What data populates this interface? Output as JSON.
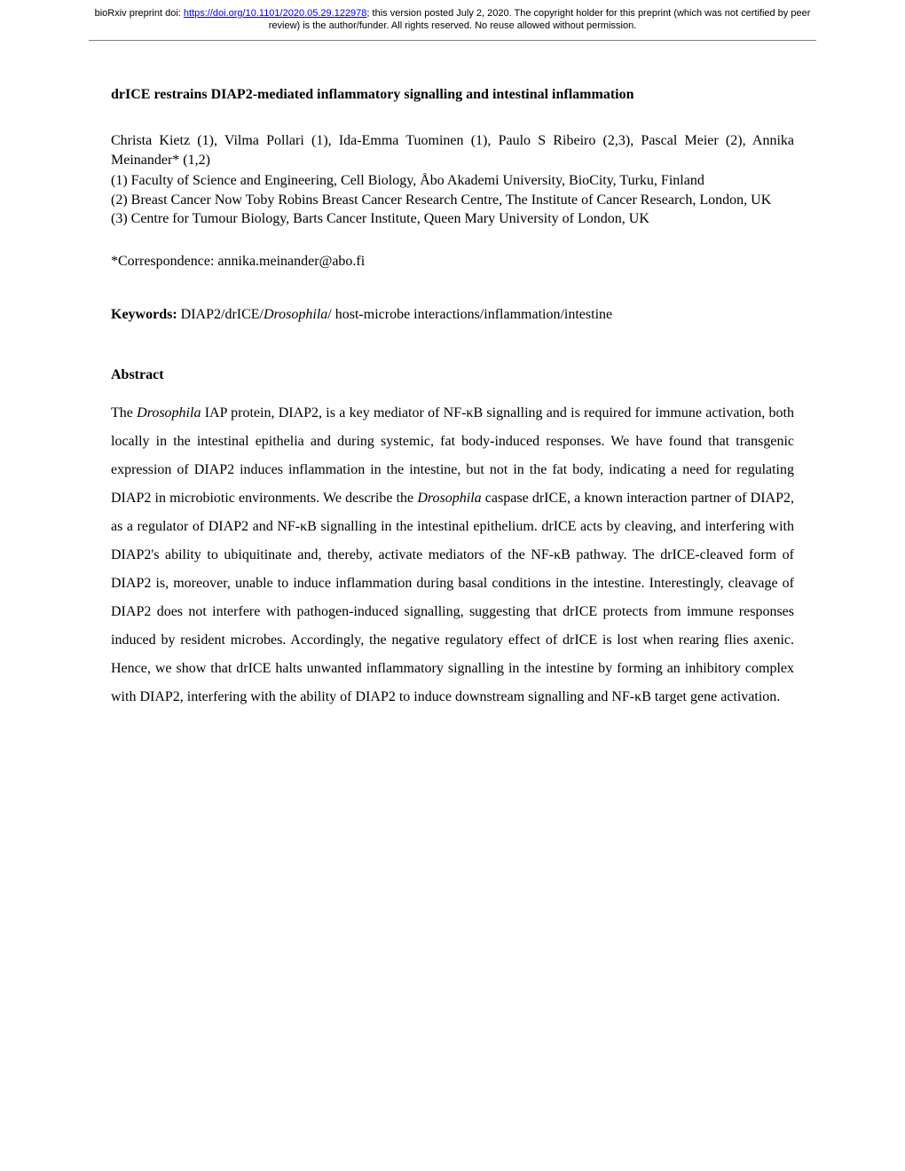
{
  "header": {
    "prefix": "bioRxiv preprint doi: ",
    "doi_url": "https://doi.org/10.1101/2020.05.29.122978",
    "suffix": "; this version posted July 2, 2020. The copyright holder for this preprint (which was not certified by peer review) is the author/funder. All rights reserved. No reuse allowed without permission."
  },
  "title": "drICE restrains DIAP2-mediated inflammatory signalling and intestinal inflammation",
  "authors": "Christa Kietz (1), Vilma Pollari (1), Ida-Emma Tuominen (1), Paulo S Ribeiro (2,3), Pascal Meier (2), Annika Meinander* (1,2)",
  "affiliations": {
    "a1": "(1) Faculty of Science and Engineering, Cell Biology, Åbo Akademi University, BioCity, Turku, Finland",
    "a2": "(2) Breast Cancer Now Toby Robins Breast Cancer Research Centre, The Institute of Cancer Research, London, UK",
    "a3": "(3) Centre for Tumour Biology, Barts Cancer Institute, Queen Mary University of London, UK"
  },
  "correspondence": "*Correspondence: annika.meinander@abo.fi",
  "keywords": {
    "label": "Keywords: ",
    "pre": "DIAP2/drICE/",
    "italic": "Drosophila",
    "post": "/ host-microbe interactions/inflammation/intestine"
  },
  "abstract": {
    "heading": "Abstract",
    "p1_pre": "The ",
    "p1_it1": "Drosophila",
    "p1_mid1": " IAP protein, DIAP2, is a key mediator of NF-κB signalling and is required for immune activation, both locally in the intestinal epithelia and during systemic, fat body-induced responses. We have found that transgenic expression of DIAP2 induces inflammation in the intestine, but not in the fat body, indicating a need for regulating DIAP2 in microbiotic environments. We describe the ",
    "p1_it2": "Drosophila",
    "p1_mid2": " caspase drICE, a known interaction partner of DIAP2, as a regulator of DIAP2 and NF-κB signalling in the intestinal epithelium. drICE acts by cleaving, and interfering with DIAP2's ability to ubiquitinate and, thereby, activate mediators of the NF-κB pathway. The drICE-cleaved form of DIAP2 is, moreover, unable to induce inflammation during basal conditions in the intestine. Interestingly, cleavage of DIAP2 does not interfere with pathogen-induced signalling, suggesting that drICE protects from immune responses induced by resident microbes. Accordingly, the negative regulatory effect of drICE is lost when rearing flies axenic. Hence, we show that drICE halts unwanted inflammatory signalling in the intestine by forming an inhibitory complex with DIAP2, interfering with the ability of DIAP2 to induce downstream signalling and NF-κB target gene activation."
  }
}
